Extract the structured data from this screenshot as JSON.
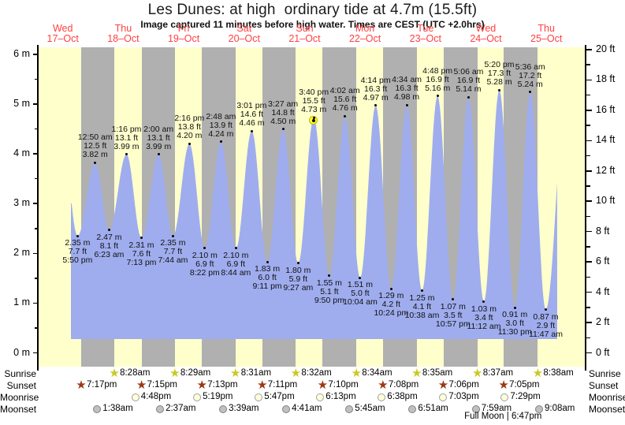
{
  "astro_rows": [
    "Sunrise",
    "Sunset",
    "Moonrise",
    "Moonset"
  ],
  "colors": {
    "day_band": "#ffffcc",
    "night_band": "#b0b0b0",
    "tide_fill": "#9fadee",
    "day_label": "#ff4040",
    "axis": "#000000",
    "sunrise_star": "#c9c922",
    "sunset_star": "#9a3a12",
    "moonrise_fill": "#ffffdd",
    "moonrise_border": "#a0a0a0",
    "moonset_fill": "#c0c0c0",
    "moonset_border": "#808080",
    "current_marker_fill": "#ffff2e",
    "current_marker_border": "#b9b900"
  },
  "chart_data": {
    "type": "area",
    "title": "Les Dunes: at high  ordinary tide at 4.7m (15.5ft)",
    "subtitle": "Image captured 11 minutes before high water. Times are CEST (UTC +2.0hrs)",
    "x_axis": {
      "days": [
        {
          "name": "Wed",
          "date": "17–Oct"
        },
        {
          "name": "Thu",
          "date": "18–Oct"
        },
        {
          "name": "Fri",
          "date": "19–Oct"
        },
        {
          "name": "Sat",
          "date": "20–Oct"
        },
        {
          "name": "Sun",
          "date": "21–Oct"
        },
        {
          "name": "Mon",
          "date": "22–Oct"
        },
        {
          "name": "Tue",
          "date": "23–Oct"
        },
        {
          "name": "Wed",
          "date": "24–Oct"
        },
        {
          "name": "Thu",
          "date": "25–Oct"
        }
      ]
    },
    "y_axis_left": {
      "unit": "m",
      "min": 0,
      "max": 6,
      "major_step": 1,
      "minor_step": 0.5
    },
    "y_axis_right": {
      "unit": "ft",
      "min": 0,
      "max": 20,
      "major_step": 2,
      "minor_step": 1
    },
    "tide_events": [
      {
        "day": 0,
        "time": "5:50 pm",
        "type": "low",
        "height_m": 2.35,
        "height_ft": 7.7
      },
      {
        "day": 1,
        "time": "12:50 am",
        "type": "high",
        "height_m": 3.82,
        "height_ft": 12.5
      },
      {
        "day": 1,
        "time": "6:23 am",
        "type": "low",
        "height_m": 2.47,
        "height_ft": 8.1
      },
      {
        "day": 1,
        "time": "1:16 pm",
        "type": "high",
        "height_m": 3.99,
        "height_ft": 13.1
      },
      {
        "day": 1,
        "time": "7:13 pm",
        "type": "low",
        "height_m": 2.31,
        "height_ft": 7.6
      },
      {
        "day": 2,
        "time": "2:00 am",
        "type": "high",
        "height_m": 3.99,
        "height_ft": 13.1
      },
      {
        "day": 2,
        "time": "7:44 am",
        "type": "low",
        "height_m": 2.35,
        "height_ft": 7.7
      },
      {
        "day": 2,
        "time": "2:16 pm",
        "type": "high",
        "height_m": 4.2,
        "height_ft": 13.8
      },
      {
        "day": 2,
        "time": "8:22 pm",
        "type": "low",
        "height_m": 2.1,
        "height_ft": 6.9
      },
      {
        "day": 3,
        "time": "2:48 am",
        "type": "high",
        "height_m": 4.24,
        "height_ft": 13.9
      },
      {
        "day": 3,
        "time": "8:44 am",
        "type": "low",
        "height_m": 2.1,
        "height_ft": 6.9
      },
      {
        "day": 3,
        "time": "3:01 pm",
        "type": "high",
        "height_m": 4.46,
        "height_ft": 14.6
      },
      {
        "day": 3,
        "time": "9:11 pm",
        "type": "low",
        "height_m": 1.83,
        "height_ft": 6.0
      },
      {
        "day": 4,
        "time": "3:27 am",
        "type": "high",
        "height_m": 4.5,
        "height_ft": 14.8
      },
      {
        "day": 4,
        "time": "9:27 am",
        "type": "low",
        "height_m": 1.8,
        "height_ft": 5.9
      },
      {
        "day": 4,
        "time": "3:40 pm",
        "type": "high",
        "height_m": 4.73,
        "height_ft": 15.5
      },
      {
        "day": 4,
        "time": "9:50 pm",
        "type": "low",
        "height_m": 1.55,
        "height_ft": 5.1
      },
      {
        "day": 5,
        "time": "4:02 am",
        "type": "high",
        "height_m": 4.76,
        "height_ft": 15.6
      },
      {
        "day": 5,
        "time": "10:04 am",
        "type": "low",
        "height_m": 1.51,
        "height_ft": 5.0
      },
      {
        "day": 5,
        "time": "4:14 pm",
        "type": "high",
        "height_m": 4.97,
        "height_ft": 16.3
      },
      {
        "day": 5,
        "time": "10:24 pm",
        "type": "low",
        "height_m": 1.29,
        "height_ft": 4.2
      },
      {
        "day": 6,
        "time": "4:34 am",
        "type": "high",
        "height_m": 4.98,
        "height_ft": 16.3
      },
      {
        "day": 6,
        "time": "10:38 am",
        "type": "low",
        "height_m": 1.25,
        "height_ft": 4.1
      },
      {
        "day": 6,
        "time": "4:48 pm",
        "type": "high",
        "height_m": 5.16,
        "height_ft": 16.9
      },
      {
        "day": 6,
        "time": "10:57 pm",
        "type": "low",
        "height_m": 1.07,
        "height_ft": 3.5
      },
      {
        "day": 7,
        "time": "5:06 am",
        "type": "high",
        "height_m": 5.14,
        "height_ft": 16.9
      },
      {
        "day": 7,
        "time": "11:12 am",
        "type": "low",
        "height_m": 1.03,
        "height_ft": 3.4
      },
      {
        "day": 7,
        "time": "5:20 pm",
        "type": "high",
        "height_m": 5.28,
        "height_ft": 17.3
      },
      {
        "day": 7,
        "time": "11:30 pm",
        "type": "low",
        "height_m": 0.91,
        "height_ft": 3.0
      },
      {
        "day": 8,
        "time": "5:36 am",
        "type": "high",
        "height_m": 5.24,
        "height_ft": 17.2
      },
      {
        "day": 8,
        "time": "11:47 am",
        "type": "low",
        "height_m": 0.87,
        "height_ft": 2.9
      }
    ],
    "current_marker": {
      "day": 4,
      "time": "3:40 pm",
      "height_m": 4.73
    },
    "sun_moon": {
      "sunrise": [
        {
          "day": 1,
          "time": "8:28am"
        },
        {
          "day": 2,
          "time": "8:29am"
        },
        {
          "day": 3,
          "time": "8:31am"
        },
        {
          "day": 4,
          "time": "8:32am"
        },
        {
          "day": 5,
          "time": "8:34am"
        },
        {
          "day": 6,
          "time": "8:35am"
        },
        {
          "day": 7,
          "time": "8:37am"
        },
        {
          "day": 8,
          "time": "8:38am"
        }
      ],
      "sunset": [
        {
          "day": 0,
          "time": "7:17pm"
        },
        {
          "day": 1,
          "time": "7:15pm"
        },
        {
          "day": 2,
          "time": "7:13pm"
        },
        {
          "day": 3,
          "time": "7:11pm"
        },
        {
          "day": 4,
          "time": "7:10pm"
        },
        {
          "day": 5,
          "time": "7:08pm"
        },
        {
          "day": 6,
          "time": "7:06pm"
        },
        {
          "day": 7,
          "time": "7:05pm"
        }
      ],
      "moonrise": [
        {
          "day": 1,
          "time": "4:48pm"
        },
        {
          "day": 2,
          "time": "5:19pm"
        },
        {
          "day": 3,
          "time": "5:47pm"
        },
        {
          "day": 4,
          "time": "6:13pm"
        },
        {
          "day": 5,
          "time": "6:38pm"
        },
        {
          "day": 6,
          "time": "7:03pm"
        },
        {
          "day": 7,
          "time": "7:29pm"
        }
      ],
      "moonset": [
        {
          "day": 1,
          "time": "1:38am"
        },
        {
          "day": 2,
          "time": "2:37am"
        },
        {
          "day": 3,
          "time": "3:39am"
        },
        {
          "day": 4,
          "time": "4:41am"
        },
        {
          "day": 5,
          "time": "5:45am"
        },
        {
          "day": 6,
          "time": "6:51am"
        },
        {
          "day": 7,
          "time": "7:59am"
        },
        {
          "day": 8,
          "time": "9:08am"
        }
      ]
    },
    "full_moon": {
      "day": 7,
      "label": "Full Moon",
      "time": "6:47pm"
    }
  }
}
